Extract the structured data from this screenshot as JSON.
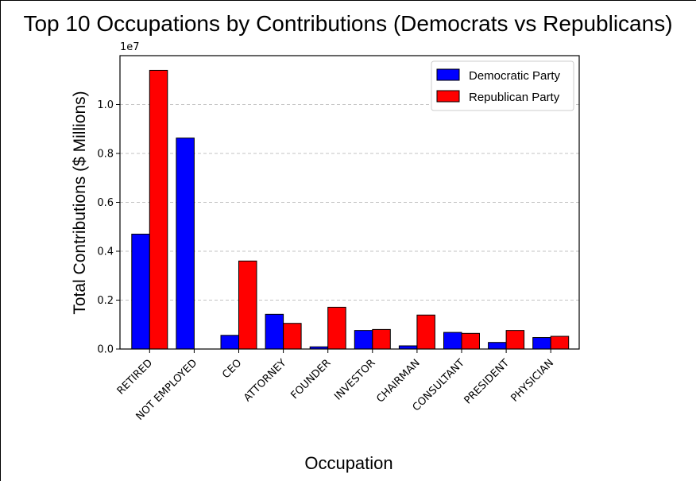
{
  "chart_data": {
    "type": "bar",
    "title": "Top 10 Occupations by Contributions (Democrats vs Republicans)",
    "xlabel": "Occupation",
    "ylabel": "Total Contributions ($ Millions)",
    "y_offset_label": "1e7",
    "ylim": [
      0,
      12000000
    ],
    "yticks": [
      0,
      2000000,
      4000000,
      6000000,
      8000000,
      10000000
    ],
    "ytick_labels": [
      "0.0",
      "0.2",
      "0.4",
      "0.6",
      "0.8",
      "1.0"
    ],
    "grid": "y-dashed",
    "legend_placement": "top-right",
    "categories": [
      "RETIRED",
      "NOT EMPLOYED",
      "CEO",
      "ATTORNEY",
      "FOUNDER",
      "INVESTOR",
      "CHAIRMAN",
      "CONSULTANT",
      "PRESIDENT",
      "PHYSICIAN"
    ],
    "series": [
      {
        "name": "Democratic Party",
        "color": "#0000ff",
        "values": [
          4700000,
          8630000,
          560000,
          1420000,
          90000,
          760000,
          130000,
          680000,
          270000,
          470000
        ]
      },
      {
        "name": "Republican Party",
        "color": "#ff0000",
        "values": [
          11400000,
          0,
          3600000,
          1050000,
          1710000,
          800000,
          1390000,
          640000,
          760000,
          520000
        ]
      }
    ]
  }
}
